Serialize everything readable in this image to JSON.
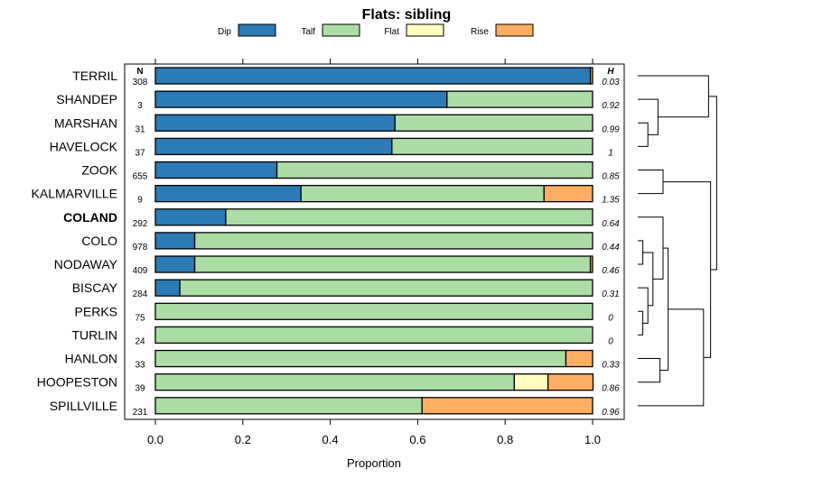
{
  "chart_data": {
    "type": "bar",
    "subtype": "horizontal-stacked-proportion",
    "title": "Flats: sibling",
    "xlabel": "Proportion",
    "ylabel": "",
    "xlim": [
      0,
      1
    ],
    "xticks": [
      0.0,
      0.2,
      0.4,
      0.6,
      0.8,
      1.0
    ],
    "xtick_labels": [
      "0.0",
      "0.2",
      "0.4",
      "0.6",
      "0.8",
      "1.0"
    ],
    "legend_position": "top",
    "n_header": "N",
    "h_header": "H",
    "series": [
      {
        "name": "Dip",
        "color": "#2c7bb6"
      },
      {
        "name": "Talf",
        "color": "#abdda4"
      },
      {
        "name": "Flat",
        "color": "#ffffbf"
      },
      {
        "name": "Rise",
        "color": "#fdae61"
      }
    ],
    "rows": [
      {
        "label": "TERRIL",
        "n": "308",
        "h": "0.03",
        "bold": false,
        "values": [
          0.995,
          0.0,
          0.0,
          0.005
        ]
      },
      {
        "label": "SHANDEP",
        "n": "3",
        "h": "0.92",
        "bold": false,
        "values": [
          0.667,
          0.333,
          0.0,
          0.0
        ]
      },
      {
        "label": "MARSHAN",
        "n": "31",
        "h": "0.99",
        "bold": false,
        "values": [
          0.548,
          0.452,
          0.0,
          0.0
        ]
      },
      {
        "label": "HAVELOCK",
        "n": "37",
        "h": "1",
        "bold": false,
        "values": [
          0.541,
          0.459,
          0.0,
          0.0
        ]
      },
      {
        "label": "ZOOK",
        "n": "655",
        "h": "0.85",
        "bold": false,
        "values": [
          0.278,
          0.722,
          0.0,
          0.0
        ]
      },
      {
        "label": "KALMARVILLE",
        "n": "9",
        "h": "1.35",
        "bold": false,
        "values": [
          0.333,
          0.556,
          0.0,
          0.111
        ]
      },
      {
        "label": "COLAND",
        "n": "292",
        "h": "0.64",
        "bold": true,
        "values": [
          0.161,
          0.839,
          0.0,
          0.0
        ]
      },
      {
        "label": "COLO",
        "n": "978",
        "h": "0.44",
        "bold": false,
        "values": [
          0.09,
          0.91,
          0.0,
          0.0
        ]
      },
      {
        "label": "NODAWAY",
        "n": "409",
        "h": "0.46",
        "bold": false,
        "values": [
          0.09,
          0.905,
          0.0,
          0.005
        ]
      },
      {
        "label": "BISCAY",
        "n": "284",
        "h": "0.31",
        "bold": false,
        "values": [
          0.056,
          0.944,
          0.0,
          0.0
        ]
      },
      {
        "label": "PERKS",
        "n": "75",
        "h": "0",
        "bold": false,
        "values": [
          0.0,
          1.0,
          0.0,
          0.0
        ]
      },
      {
        "label": "TURLIN",
        "n": "24",
        "h": "0",
        "bold": false,
        "values": [
          0.0,
          1.0,
          0.0,
          0.0
        ]
      },
      {
        "label": "HANLON",
        "n": "33",
        "h": "0.33",
        "bold": false,
        "values": [
          0.0,
          0.939,
          0.0,
          0.061
        ]
      },
      {
        "label": "HOOPESTON",
        "n": "39",
        "h": "0.86",
        "bold": false,
        "values": [
          0.0,
          0.821,
          0.077,
          0.103
        ]
      },
      {
        "label": "SPILLVILLE",
        "n": "231",
        "h": "0.96",
        "bold": false,
        "values": [
          0.0,
          0.61,
          0.0,
          0.39
        ]
      }
    ],
    "dendrogram": {
      "description": "hierarchical clustering of the rows shown at right",
      "merges": [
        {
          "a": 2,
          "b": 3,
          "height": 0.1
        },
        {
          "a": 1,
          "b": "m0",
          "height": 0.2
        },
        {
          "a": 0,
          "b": "m1",
          "height": 0.7
        },
        {
          "a": 4,
          "b": 5,
          "height": 0.25
        },
        {
          "a": 7,
          "b": 8,
          "height": 0.05
        },
        {
          "a": 10,
          "b": 11,
          "height": 0.05
        },
        {
          "a": 9,
          "b": "m5",
          "height": 0.1
        },
        {
          "a": "m4",
          "b": "m6",
          "height": 0.15
        },
        {
          "a": 6,
          "b": "m7",
          "height": 0.25
        },
        {
          "a": 12,
          "b": 13,
          "height": 0.22
        },
        {
          "a": "m8",
          "b": "m9",
          "height": 0.3
        },
        {
          "a": 14,
          "b": "m10",
          "height": 0.65
        },
        {
          "a": "m3",
          "b": "m11",
          "height": 0.72
        },
        {
          "a": "m2",
          "b": "m12",
          "height": 0.78
        }
      ]
    }
  }
}
